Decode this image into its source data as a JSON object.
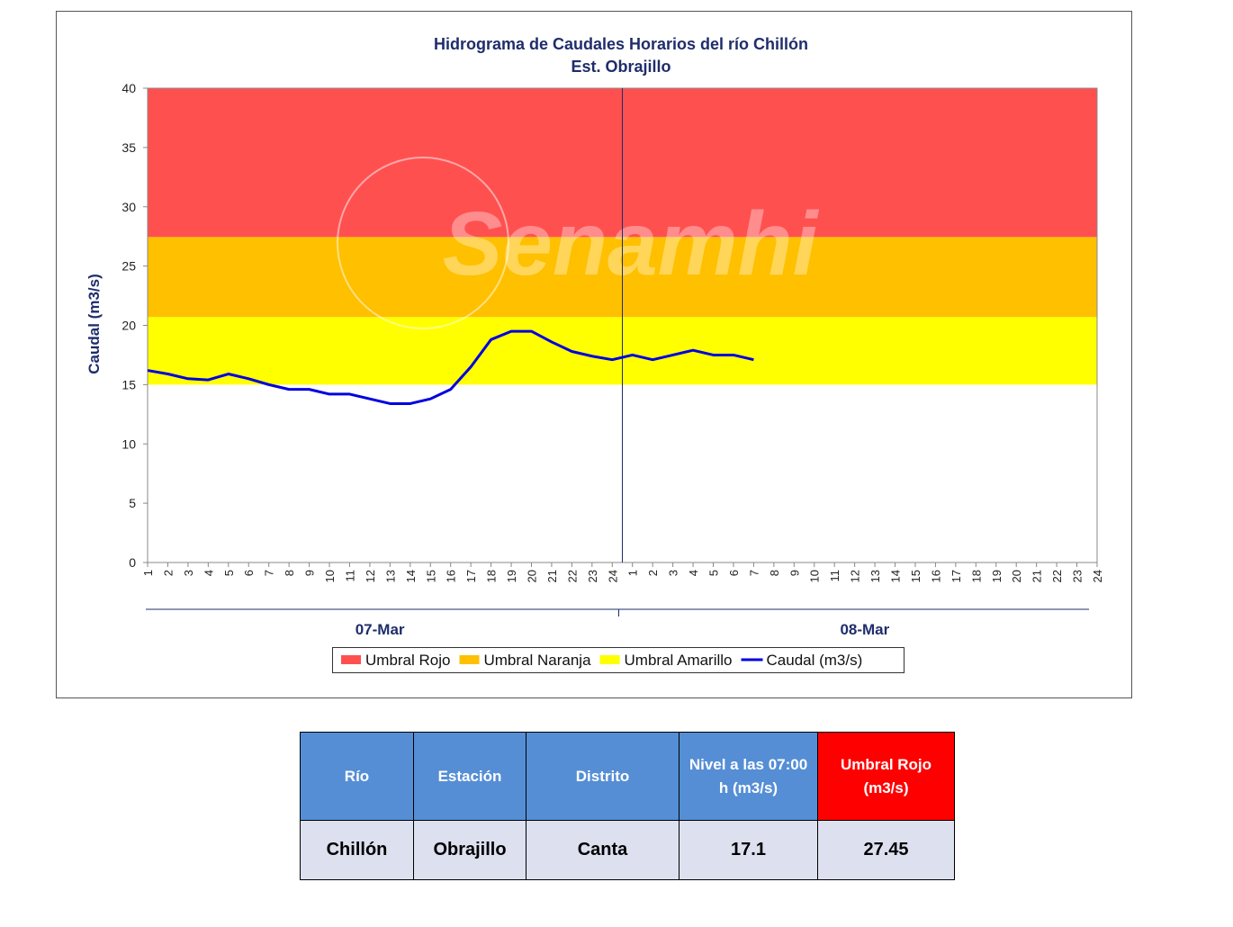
{
  "chart_data": {
    "type": "line",
    "title": "Hidrograma  de Caudales Horarios  del río Chillón",
    "subtitle": "Est. Obrajillo",
    "y_label": "Caudal (m3/s)",
    "watermark": "Senamhi",
    "categories": [
      "1",
      "2",
      "3",
      "4",
      "5",
      "6",
      "7",
      "8",
      "9",
      "10",
      "11",
      "12",
      "13",
      "14",
      "15",
      "16",
      "17",
      "18",
      "19",
      "20",
      "21",
      "22",
      "23",
      "24",
      "1",
      "2",
      "3",
      "4",
      "5",
      "6",
      "7",
      "8",
      "9",
      "10",
      "11",
      "12",
      "13",
      "14",
      "15",
      "16",
      "17",
      "18",
      "19",
      "20",
      "21",
      "22",
      "23",
      "24"
    ],
    "groups": [
      "07-Mar",
      "08-Mar"
    ],
    "ylim": [
      0,
      40
    ],
    "yticks": [
      0,
      5,
      10,
      15,
      20,
      25,
      30,
      35,
      40
    ],
    "thresholds": [
      {
        "name": "Umbral Rojo",
        "color": "#ff5050",
        "value": 27.45
      },
      {
        "name": "Umbral Naranja",
        "color": "#ffc000",
        "value": 20.7
      },
      {
        "name": "Umbral Amarillo",
        "color": "#ffff00",
        "value": 15
      }
    ],
    "series": [
      {
        "name": "Caudal (m3/s)",
        "color": "#0000e0",
        "values": [
          16.2,
          15.9,
          15.5,
          15.4,
          15.9,
          15.5,
          15.0,
          14.6,
          14.6,
          14.2,
          14.2,
          13.8,
          13.4,
          13.4,
          13.8,
          14.6,
          16.5,
          18.8,
          19.5,
          19.5,
          18.6,
          17.8,
          17.4,
          17.1,
          17.5,
          17.1,
          17.5,
          17.9,
          17.5,
          17.5,
          17.1,
          null,
          null,
          null,
          null,
          null,
          null,
          null,
          null,
          null,
          null,
          null,
          null,
          null,
          null,
          null,
          null,
          null
        ]
      }
    ]
  },
  "table": {
    "header": [
      "Río",
      "Estación",
      "Distrito",
      "Nivel a las 07:00 h (m3/s)",
      "Umbral Rojo (m3/s)"
    ],
    "rows": [
      [
        "Chillón",
        "Obrajillo",
        "Canta",
        "17.1",
        "27.45"
      ]
    ]
  }
}
